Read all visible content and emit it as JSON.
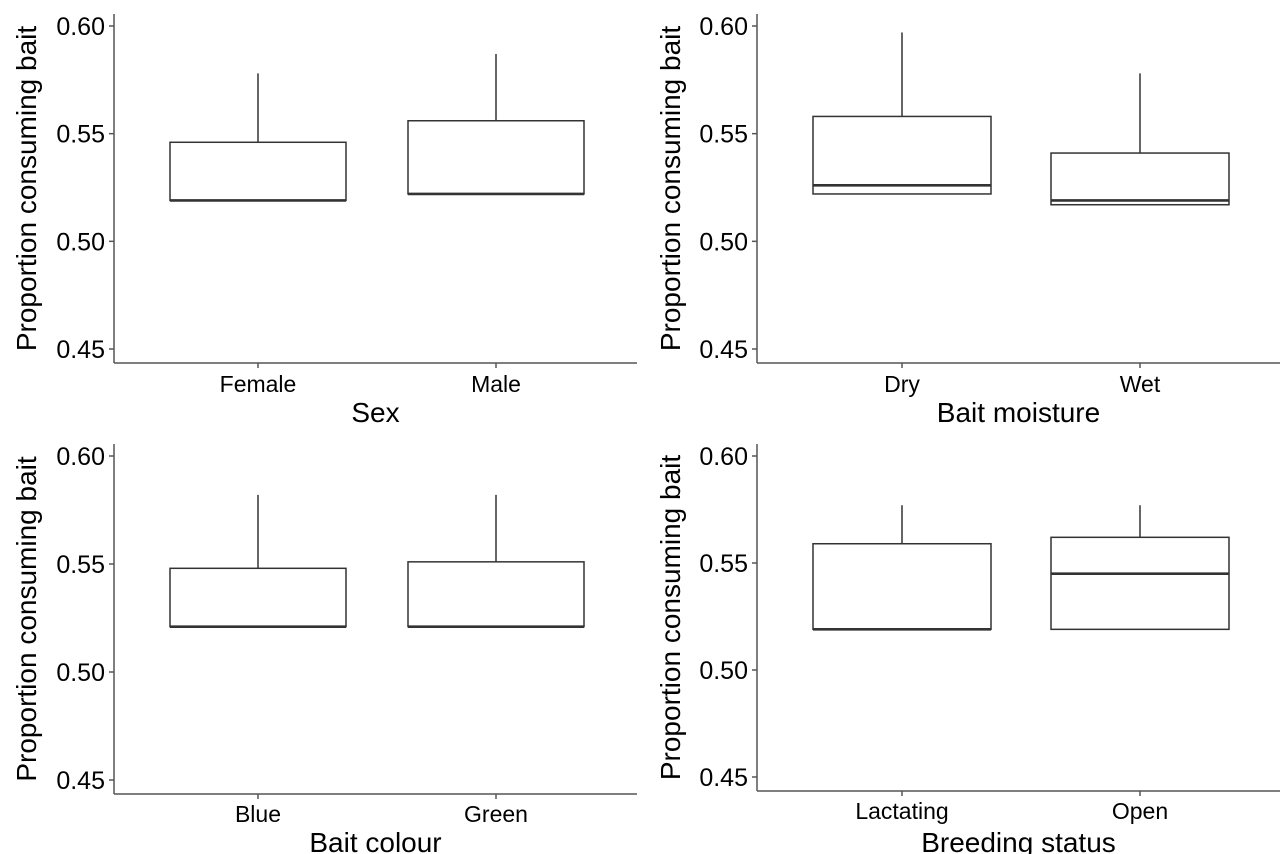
{
  "chart_data": [
    {
      "type": "box",
      "ylabel": "Proportion consuming bait",
      "xlabel": "Sex",
      "ylim": [
        0.445,
        0.605
      ],
      "yticks": [
        "0.45",
        "0.50",
        "0.55",
        "0.60"
      ],
      "grid": false,
      "categories": [
        "Female",
        "Male"
      ],
      "boxes": [
        {
          "category": "Female",
          "lower": 0.519,
          "median": 0.519,
          "upper": 0.546,
          "whisker_low": 0.519,
          "whisker_high": 0.578
        },
        {
          "category": "Male",
          "lower": 0.522,
          "median": 0.522,
          "upper": 0.556,
          "whisker_low": 0.522,
          "whisker_high": 0.587
        }
      ]
    },
    {
      "type": "box",
      "ylabel": "Proportion consuming bait",
      "xlabel": "Bait moisture",
      "ylim": [
        0.445,
        0.605
      ],
      "yticks": [
        "0.45",
        "0.50",
        "0.55",
        "0.60"
      ],
      "grid": false,
      "categories": [
        "Dry",
        "Wet"
      ],
      "boxes": [
        {
          "category": "Dry",
          "lower": 0.522,
          "median": 0.526,
          "upper": 0.558,
          "whisker_low": 0.522,
          "whisker_high": 0.597
        },
        {
          "category": "Wet",
          "lower": 0.517,
          "median": 0.519,
          "upper": 0.541,
          "whisker_low": 0.517,
          "whisker_high": 0.578
        }
      ]
    },
    {
      "type": "box",
      "ylabel": "Proportion consuming bait",
      "xlabel": "Bait colour",
      "ylim": [
        0.445,
        0.605
      ],
      "yticks": [
        "0.45",
        "0.50",
        "0.55",
        "0.60"
      ],
      "grid": false,
      "categories": [
        "Blue",
        "Green"
      ],
      "boxes": [
        {
          "category": "Blue",
          "lower": 0.521,
          "median": 0.521,
          "upper": 0.548,
          "whisker_low": 0.521,
          "whisker_high": 0.582
        },
        {
          "category": "Green",
          "lower": 0.521,
          "median": 0.521,
          "upper": 0.551,
          "whisker_low": 0.521,
          "whisker_high": 0.582
        }
      ]
    },
    {
      "type": "box",
      "ylabel": "Proportion consuming bait",
      "xlabel": "Breeding status",
      "ylim": [
        0.445,
        0.605
      ],
      "yticks": [
        "0.45",
        "0.50",
        "0.55",
        "0.60"
      ],
      "grid": false,
      "categories": [
        "Lactating",
        "Open"
      ],
      "boxes": [
        {
          "category": "Lactating",
          "lower": 0.519,
          "median": 0.519,
          "upper": 0.559,
          "whisker_low": 0.519,
          "whisker_high": 0.577
        },
        {
          "category": "Open",
          "lower": 0.519,
          "median": 0.545,
          "upper": 0.562,
          "whisker_low": 0.519,
          "whisker_high": 0.577
        }
      ]
    }
  ]
}
